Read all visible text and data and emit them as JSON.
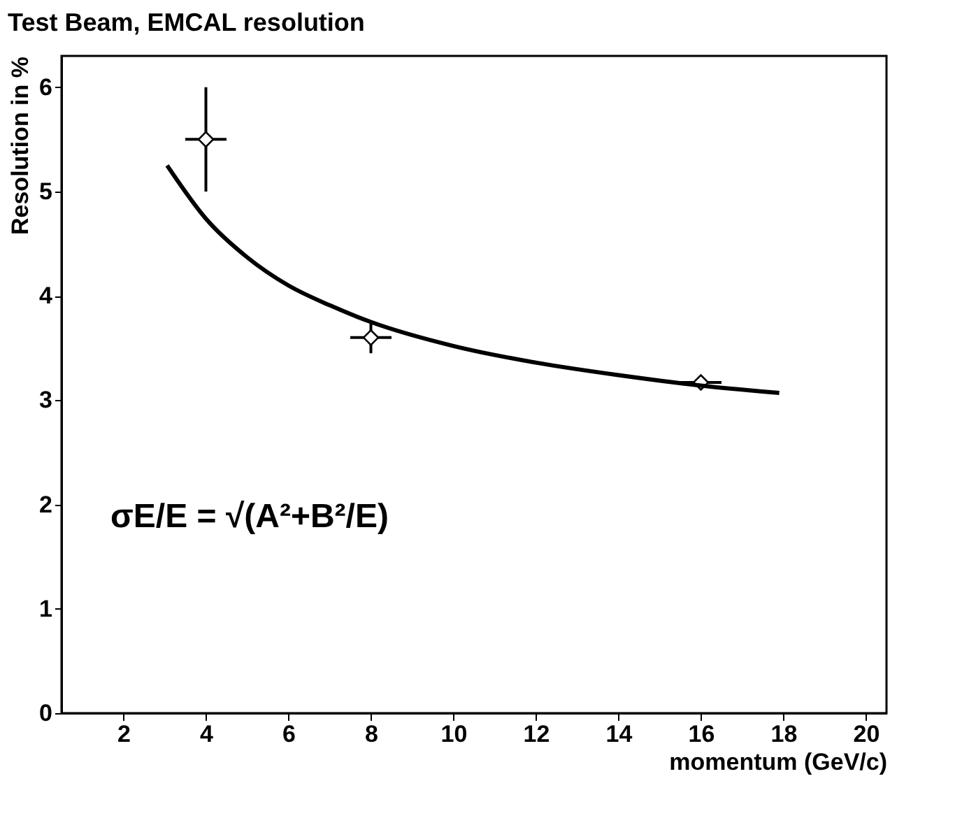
{
  "chart_data": {
    "type": "scatter",
    "title": "Test Beam, EMCAL resolution",
    "xlabel": "momentum (GeV/c)",
    "ylabel": "Resolution in %",
    "xlim": [
      0.5,
      20.5
    ],
    "ylim": [
      0,
      6.3
    ],
    "xticks": [
      2,
      4,
      6,
      8,
      10,
      12,
      14,
      16,
      18,
      20
    ],
    "yticks": [
      0,
      1,
      2,
      3,
      4,
      5,
      6
    ],
    "annotations": [
      "σE/E = √(A²+B²/E)"
    ],
    "series": [
      {
        "color": "#000000",
        "marker": "diamond",
        "x": [
          4,
          8,
          16
        ],
        "values": [
          5.5,
          3.6,
          3.17
        ],
        "errors": [
          0.5,
          0.15,
          0.03
        ],
        "xerrors": [
          0.5,
          0.5,
          0.5
        ]
      },
      {
        "type": "line",
        "color": "#000000",
        "line_style": "solid",
        "x": [
          3.06,
          4,
          5,
          6,
          7,
          8,
          10,
          12,
          14,
          16,
          17.9
        ],
        "values": [
          5.25,
          4.74,
          4.37,
          4.1,
          3.91,
          3.75,
          3.52,
          3.36,
          3.24,
          3.14,
          3.07
        ]
      }
    ]
  }
}
